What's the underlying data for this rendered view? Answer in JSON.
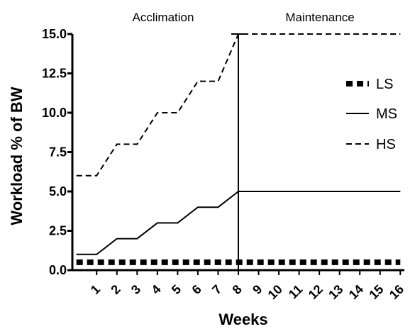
{
  "chart_data": {
    "type": "line",
    "xlabel": "Weeks",
    "ylabel": "Workload % of BW",
    "ylim": [
      0,
      15
    ],
    "xlim": [
      -0.2,
      16.2
    ],
    "yticks": [
      "0.0",
      "2.5",
      "5.0",
      "7.5",
      "10.0",
      "12.5",
      "15.0"
    ],
    "xticks": [
      "1",
      "2",
      "3",
      "4",
      "5",
      "6",
      "7",
      "8",
      "9",
      "10",
      "11",
      "12",
      "13",
      "14",
      "15",
      "16"
    ],
    "phases": [
      {
        "label": "Acclimation"
      },
      {
        "label": "Maintenance"
      }
    ],
    "phase_divider_x": 8,
    "legend_position": "right",
    "grid": false,
    "series": [
      {
        "name": "LS",
        "style": "thick-dotted",
        "color": "#000000",
        "points": [
          [
            0,
            0.5
          ],
          [
            16,
            0.5
          ]
        ]
      },
      {
        "name": "MS",
        "style": "solid",
        "color": "#000000",
        "points": [
          [
            0,
            1
          ],
          [
            1,
            1
          ],
          [
            2,
            2
          ],
          [
            3,
            2
          ],
          [
            4,
            3
          ],
          [
            5,
            3
          ],
          [
            6,
            4
          ],
          [
            7,
            4
          ],
          [
            8,
            5
          ],
          [
            16,
            5
          ]
        ]
      },
      {
        "name": "HS",
        "style": "dashed",
        "color": "#000000",
        "points": [
          [
            0,
            6
          ],
          [
            1,
            6
          ],
          [
            2,
            8
          ],
          [
            3,
            8
          ],
          [
            4,
            10
          ],
          [
            5,
            10
          ],
          [
            6,
            12
          ],
          [
            7,
            12
          ],
          [
            8,
            15
          ],
          [
            16,
            15
          ]
        ]
      }
    ]
  }
}
